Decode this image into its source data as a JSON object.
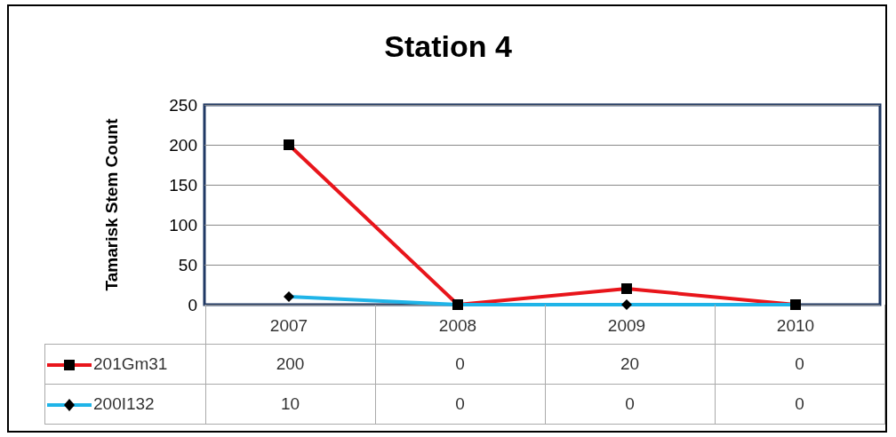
{
  "chart_data": {
    "type": "line",
    "title": "Station 4",
    "ylabel": "Tamarisk Stem Count",
    "categories": [
      "2007",
      "2008",
      "2009",
      "2010"
    ],
    "series": [
      {
        "name": "201Gm31",
        "color": "#e8151b",
        "marker": "square",
        "values": [
          200,
          0,
          20,
          0
        ]
      },
      {
        "name": "200I132",
        "color": "#1fb4e8",
        "marker": "diamond",
        "values": [
          10,
          0,
          0,
          0
        ]
      }
    ],
    "ylim": [
      0,
      250
    ],
    "yticks": [
      0,
      50,
      100,
      150,
      200,
      250
    ],
    "grid": "y",
    "legend": "bottom",
    "data_labels": true
  }
}
